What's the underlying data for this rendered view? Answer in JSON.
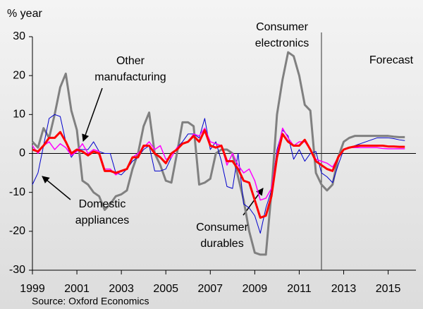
{
  "chart_data": {
    "type": "line",
    "y_label": "% year",
    "source": "Source: Oxford Economics",
    "forecast_label": "Forecast",
    "forecast_x": 2012,
    "xlim": [
      1999,
      2016.25
    ],
    "xticks": [
      1999,
      2001,
      2003,
      2005,
      2007,
      2009,
      2011,
      2013,
      2015
    ],
    "ylim": [
      -30,
      30
    ],
    "yticks": [
      -30,
      -20,
      -10,
      0,
      10,
      20,
      30
    ],
    "x": [
      1999,
      1999.25,
      1999.5,
      1999.75,
      2000,
      2000.25,
      2000.5,
      2000.75,
      2001,
      2001.25,
      2001.5,
      2001.75,
      2002,
      2002.25,
      2002.5,
      2002.75,
      2003,
      2003.25,
      2003.5,
      2003.75,
      2004,
      2004.25,
      2004.5,
      2004.75,
      2005,
      2005.25,
      2005.5,
      2005.75,
      2006,
      2006.25,
      2006.5,
      2006.75,
      2007,
      2007.25,
      2007.5,
      2007.75,
      2008,
      2008.25,
      2008.5,
      2008.75,
      2009,
      2009.25,
      2009.5,
      2009.75,
      2010,
      2010.25,
      2010.5,
      2010.75,
      2011,
      2011.25,
      2011.5,
      2011.75,
      2012,
      2012.25,
      2012.5,
      2012.75,
      2013,
      2013.25,
      2013.5,
      2013.75,
      2014,
      2014.25,
      2014.5,
      2014.75,
      2015,
      2015.25,
      2015.5,
      2015.75
    ],
    "series": [
      {
        "name": "Consumer electronics",
        "color": "#808080",
        "width": 3,
        "values": [
          3,
          1.5,
          6.5,
          4,
          10,
          17,
          20.5,
          11,
          6,
          -7,
          -8,
          -10,
          -11,
          -14.5,
          -13,
          -11,
          -10.5,
          -9.5,
          -4,
          0,
          7,
          10.5,
          0,
          -3,
          -7,
          -7.5,
          0,
          8,
          8,
          7,
          -8,
          -7.5,
          -6.5,
          0,
          1,
          1,
          0,
          -6,
          -12,
          -20,
          -25.5,
          -26,
          -26,
          -10,
          10,
          19,
          26,
          25,
          20,
          12.5,
          11,
          -5,
          -8,
          -9.5,
          -8,
          -1,
          3,
          4,
          4.5,
          4.5,
          4.5,
          4.5,
          4.5,
          4.5,
          4.5,
          4.3,
          4.2,
          4.2
        ]
      },
      {
        "name": "Domestic appliances",
        "color": "#0000cc",
        "width": 1,
        "values": [
          -8,
          -5,
          2,
          9,
          10,
          9.5,
          3,
          -1,
          1,
          1,
          1,
          3,
          0.5,
          0,
          0,
          -5,
          -5.5,
          -4,
          -2,
          -1,
          1,
          2,
          -4.5,
          -4.5,
          -4,
          -1,
          1.5,
          3,
          5,
          5,
          4,
          9,
          1,
          3,
          -2,
          -8.5,
          -9,
          0,
          -13,
          -14,
          -16,
          -20.5,
          -14,
          -9.5,
          1,
          6,
          4.5,
          -1.5,
          1,
          -2,
          0,
          0.5,
          -5,
          -6,
          -7.5,
          -3,
          1,
          1.5,
          2,
          2.5,
          3,
          3.5,
          4,
          4,
          4,
          3.8,
          3.5,
          3.3
        ]
      },
      {
        "name": "Other manufacturing",
        "color": "#ff00ff",
        "width": 1.5,
        "values": [
          2,
          0,
          2,
          3,
          1,
          2.5,
          1.5,
          -0.5,
          0.5,
          2.5,
          0,
          1,
          0.5,
          -4,
          -4,
          -5.5,
          -4.5,
          -4,
          -1,
          0,
          1.5,
          3,
          1,
          2,
          -1.5,
          -1,
          1.5,
          2.5,
          3,
          5,
          4.5,
          6.5,
          3,
          2.5,
          2,
          -3,
          0,
          -3,
          -5,
          -4,
          -7,
          -12,
          -11.5,
          -9,
          0,
          6.5,
          4,
          2,
          3,
          3,
          1,
          -1.5,
          -2,
          -2.5,
          -3.5,
          -1,
          1,
          1.5,
          1.5,
          1.5,
          1.5,
          1.5,
          1.5,
          1.3,
          1.2,
          1.2,
          1.2,
          1.2
        ]
      },
      {
        "name": "Consumer durables",
        "color": "#ff0000",
        "width": 3,
        "values": [
          1,
          0.5,
          2,
          4,
          4,
          5.5,
          3,
          0,
          1,
          0.5,
          -0.5,
          0.5,
          0,
          -4.5,
          -4.5,
          -5,
          -4.5,
          -4,
          -1,
          -1,
          2,
          2,
          0,
          -1,
          -2.5,
          0,
          1,
          2.5,
          3,
          4.5,
          3,
          6,
          2,
          1.5,
          2,
          -2,
          -2,
          -4,
          -7,
          -7.5,
          -12,
          -16.5,
          -16,
          -11,
          -1,
          5,
          3,
          2,
          2,
          3.5,
          1,
          -2,
          -3,
          -4,
          -4.5,
          -1,
          1,
          1.5,
          1.8,
          2,
          2,
          2,
          2,
          2,
          1.8,
          1.8,
          1.7,
          1.7
        ]
      }
    ]
  }
}
